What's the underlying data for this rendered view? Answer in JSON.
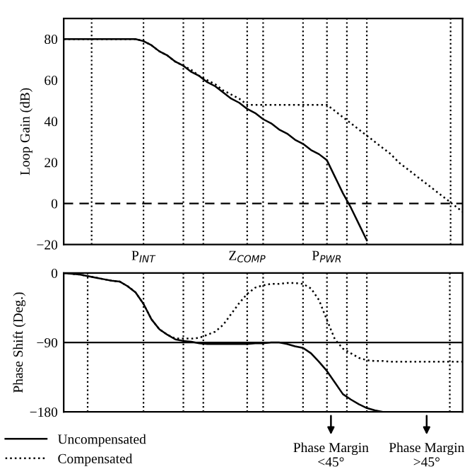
{
  "chart_data": [
    {
      "type": "line",
      "ylabel": "Loop Gain (dB)",
      "ylim": [
        -20,
        90
      ],
      "categories": [
        null,
        null,
        null,
        null,
        null,
        null,
        null,
        null,
        null,
        null,
        "P$_{INT}$",
        null,
        null,
        null,
        null,
        null,
        null,
        null,
        null,
        null,
        null,
        null,
        null,
        "Z$_{COMP}$",
        null,
        null,
        null,
        null,
        null,
        null,
        null,
        null,
        null,
        "P$_{PWR}$",
        null,
        null,
        null,
        null,
        null,
        null,
        null,
        null,
        null,
        null,
        null,
        null,
        null,
        null,
        null,
        null,
        null
      ],
      "yticks": [
        {
          "value": -20,
          "label": "−20"
        },
        0,
        20,
        40,
        60,
        80
      ],
      "grid": "x",
      "ref_lines": [
        {
          "axis": "y",
          "value": 0,
          "line_style": "dashed",
          "color": "#000000"
        }
      ],
      "series": [
        {
          "color": "#000000",
          "line_style": "solid",
          "values": [
            80,
            80,
            80,
            80,
            80,
            80,
            80,
            80,
            80,
            80,
            79,
            77,
            74,
            72,
            69,
            67,
            64,
            62,
            59,
            57,
            54,
            51,
            49,
            46,
            44,
            41,
            39,
            36,
            34,
            31,
            29,
            26,
            24,
            21,
            13,
            5,
            -2,
            -10,
            -18,
            null,
            null,
            null,
            null,
            null,
            null,
            null,
            null,
            null,
            null,
            null,
            null
          ]
        },
        {
          "color": "#000000",
          "line_style": "dotted",
          "values": [
            80,
            80,
            80,
            80,
            80,
            80,
            80,
            80,
            80,
            80,
            79,
            77,
            74,
            72,
            69,
            67,
            65,
            62,
            60,
            58,
            55,
            53,
            51,
            48,
            48,
            48,
            48,
            48,
            48,
            48,
            48,
            48,
            48,
            48,
            45,
            42,
            39,
            36,
            33,
            30,
            27,
            24,
            20,
            17,
            14,
            11,
            8,
            5,
            2,
            -1,
            -4
          ]
        }
      ]
    },
    {
      "type": "line",
      "ylabel": "Phase Shift (Deg.)",
      "ylim": [
        -180,
        0
      ],
      "categories": [
        null,
        null,
        null,
        null,
        null,
        null,
        null,
        null,
        null,
        null,
        null,
        null,
        null,
        null,
        null,
        null,
        null,
        null,
        null,
        null,
        null,
        null,
        null,
        null,
        null,
        null,
        null,
        null,
        null,
        null,
        null,
        null,
        null,
        null,
        null,
        null,
        null,
        null,
        null,
        null,
        null,
        null,
        null,
        null,
        null,
        null,
        null,
        null,
        null,
        null,
        null
      ],
      "yticks": [
        {
          "value": -180,
          "label": "−180"
        },
        {
          "value": -90,
          "label": "−90"
        },
        0
      ],
      "tick_labels": "y",
      "legend": "bottom left",
      "grid": "x",
      "ref_lines": [
        {
          "axis": "y",
          "value": -90,
          "line_style": "solid",
          "color": "#000000"
        }
      ],
      "annotations": [
        "Phase Margin\n<45°",
        "Phase Margin\n>45°"
      ],
      "series": [
        {
          "name": "Uncompensated",
          "color": "#000000",
          "line_style": "solid",
          "values": [
            0,
            -1,
            -2,
            -4,
            -6,
            -8,
            -10,
            -11,
            -17,
            -25,
            -40,
            -60,
            -73,
            -80,
            -86,
            -88,
            -89,
            -91,
            -92,
            -92,
            -92,
            -92,
            -92,
            -92,
            -91,
            -91,
            -90,
            -90,
            -92,
            -95,
            -97,
            -104,
            -115,
            -127,
            -142,
            -157,
            -164,
            -170,
            -175,
            -178,
            -180,
            -180,
            -180,
            -180,
            -180,
            -180,
            -180,
            -180,
            -180,
            -180,
            -180
          ]
        },
        {
          "name": "Compensated",
          "color": "#000000",
          "line_style": "dotted",
          "values": [
            0,
            -1,
            -2,
            -4,
            -6,
            -8,
            -10,
            -11,
            -17,
            -25,
            -40,
            -60,
            -73,
            -80,
            -85,
            -85,
            -85,
            -84,
            -80,
            -76,
            -67,
            -53,
            -39,
            -27,
            -19,
            -16,
            -14,
            -14,
            -13,
            -13,
            -14,
            -20,
            -35,
            -61,
            -86,
            -98,
            -104,
            -110,
            -113,
            -114,
            -114,
            -115,
            -115,
            -115,
            -115,
            -115,
            -115,
            -115,
            -115,
            -115,
            -115
          ]
        }
      ]
    }
  ]
}
